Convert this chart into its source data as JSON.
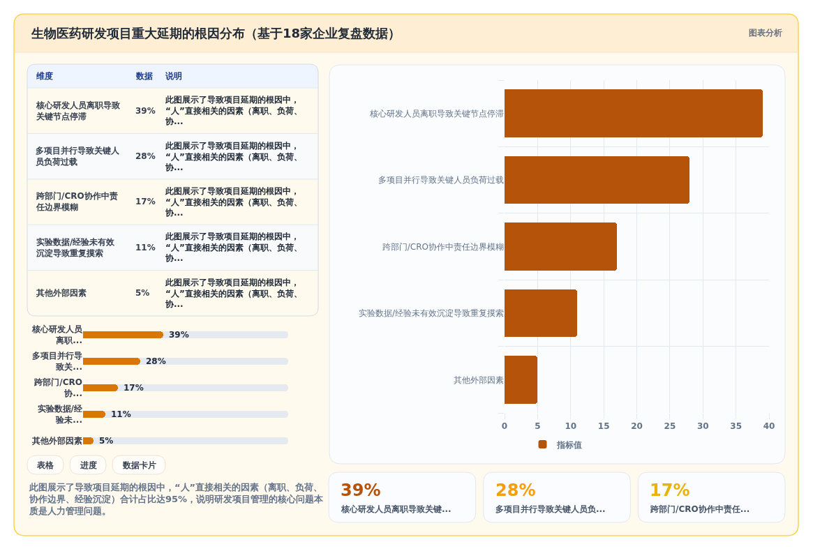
{
  "chart_data": [
    {
      "type": "other",
      "title": "生物医药研发项目重大延期的根因分布（基于18家企业复盘数据）",
      "annotations": [
        "图表分析"
      ]
    },
    {
      "type": "other",
      "categories": [
        "核心研发人员离职导致关键节点停滞",
        "多项目并行导致关键人员负荷过载",
        "跨部门/CRO协作中责任边界模糊",
        "实验数据/经验未有效沉淀导致重复摸索",
        "其他外部因素"
      ],
      "value_labels": [
        "39%",
        "28%",
        "17%",
        "11%",
        "5%"
      ],
      "annotations": [
        "维度",
        "数据",
        "说明",
        "此图展示了导致项目延期的根因中，“人”直接相关的因素（离职、负荷、协...",
        "此图展示了导致项目延期的根因中，“人”直接相关的因素（离职、负荷、协...",
        "此图展示了导致项目延期的根因中，“人”直接相关的因素（离职、负荷、协...",
        "此图展示了导致项目延期的根因中，“人”直接相关的因素（离职、负荷、协...",
        "此图展示了导致项目延期的根因中，“人”直接相关的因素（离职、负荷、协..."
      ]
    },
    {
      "type": "bar",
      "orientation": "horizontal",
      "categories": [
        "核心研发人员离职...",
        "多项目并行导致关...",
        "跨部门/CRO协...",
        "实验数据/经验未...",
        "其他外部因素"
      ],
      "values": [
        39,
        28,
        17,
        11,
        5
      ],
      "value_labels": [
        "39%",
        "28%",
        "17%",
        "11%",
        "5%"
      ],
      "color": "#d97706",
      "tick_labels": "y"
    },
    {
      "type": "other",
      "annotations": [
        "表格",
        "进度",
        "数据卡片"
      ]
    },
    {
      "type": "other",
      "annotations": [
        "此图展示了导致项目延期的根因中，“人”直接相关的因素（离职、负荷、协作边界、经验沉淀）合计占比达95%，说明研发项目管理的核心问题本质是人力管理问题。"
      ]
    },
    {
      "type": "bar",
      "orientation": "horizontal",
      "categories": [
        "核心研发人员离职导致关键节点停滞",
        "多项目并行导致关键人员负荷过载",
        "跨部门/CRO协作中责任边界模糊",
        "实验数据/经验未有效沉淀导致重复摸索",
        "其他外部因素"
      ],
      "series": [
        {
          "name": "指标值",
          "color": "#b45309",
          "values": [
            39,
            28,
            17,
            11,
            5
          ]
        }
      ],
      "xlim": [
        0,
        40
      ],
      "xticks": [
        0,
        5,
        10,
        15,
        20,
        25,
        30,
        35,
        40
      ],
      "grid": true,
      "legend": "bottom"
    },
    {
      "type": "other",
      "categories": [
        "核心研发人员离职导致关键...",
        "多项目并行导致关键人员负...",
        "跨部门/CRO协作中责任..."
      ],
      "value_labels": [
        "39%",
        "28%",
        "17%"
      ]
    }
  ]
}
